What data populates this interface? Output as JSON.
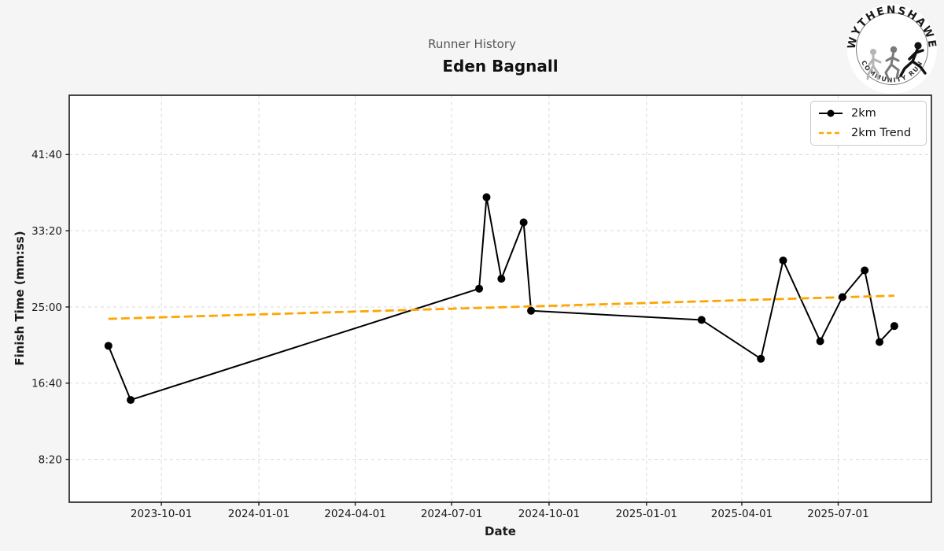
{
  "header": {
    "suptitle": "Runner History",
    "title": "Eden Bagnall"
  },
  "logo": {
    "arc_top": "WYTHENSHAWE",
    "arc_bottom": "COMMUNITY RUN"
  },
  "legend": {
    "items": [
      {
        "label": "2km"
      },
      {
        "label": "2km Trend"
      }
    ]
  },
  "colors": {
    "background": "#f5f5f5",
    "plot_background": "#ffffff",
    "grid": "#d9d9d9",
    "frame": "#1a1a1a",
    "tick_label": "#1a1a1a",
    "line": "#000000",
    "trend": "#ffa500",
    "suptitle": "#555555"
  },
  "chart_data": {
    "type": "line",
    "suptitle": "Runner History",
    "title": "Eden Bagnall",
    "xlabel": "Date",
    "ylabel": "Finish Time (mm:ss)",
    "grid": true,
    "legend_position": "upper right",
    "xlim": [
      "2023-07-06",
      "2025-09-27"
    ],
    "ylim_seconds": [
      219,
      2889
    ],
    "x_tick_labels": [
      "2023-10-01",
      "2024-01-01",
      "2024-04-01",
      "2024-07-01",
      "2024-10-01",
      "2025-01-01",
      "2025-04-01",
      "2025-07-01"
    ],
    "y_ticks": [
      {
        "label": "8:20",
        "seconds": 500
      },
      {
        "label": "16:40",
        "seconds": 1000
      },
      {
        "label": "25:00",
        "seconds": 1500
      },
      {
        "label": "33:20",
        "seconds": 2000
      },
      {
        "label": "41:40",
        "seconds": 2500
      }
    ],
    "series": [
      {
        "name": "2km",
        "style": "solid-with-markers",
        "color": "#000000",
        "points": [
          {
            "date": "2023-08-12",
            "time": "20:45"
          },
          {
            "date": "2023-09-02",
            "time": "14:50"
          },
          {
            "date": "2024-07-27",
            "time": "27:00"
          },
          {
            "date": "2024-08-03",
            "time": "37:00"
          },
          {
            "date": "2024-08-17",
            "time": "28:05"
          },
          {
            "date": "2024-09-07",
            "time": "34:15"
          },
          {
            "date": "2024-09-14",
            "time": "24:35"
          },
          {
            "date": "2025-02-22",
            "time": "23:35"
          },
          {
            "date": "2025-04-19",
            "time": "19:20"
          },
          {
            "date": "2025-05-10",
            "time": "30:05"
          },
          {
            "date": "2025-06-14",
            "time": "21:15"
          },
          {
            "date": "2025-07-05",
            "time": "26:05"
          },
          {
            "date": "2025-07-26",
            "time": "29:00"
          },
          {
            "date": "2025-08-09",
            "time": "21:10"
          },
          {
            "date": "2025-08-23",
            "time": "22:55"
          }
        ]
      },
      {
        "name": "2km Trend",
        "style": "dashed",
        "color": "#ffa500",
        "points": [
          {
            "date": "2023-08-12",
            "time": "23:42"
          },
          {
            "date": "2025-08-23",
            "time": "26:14"
          }
        ]
      }
    ]
  }
}
